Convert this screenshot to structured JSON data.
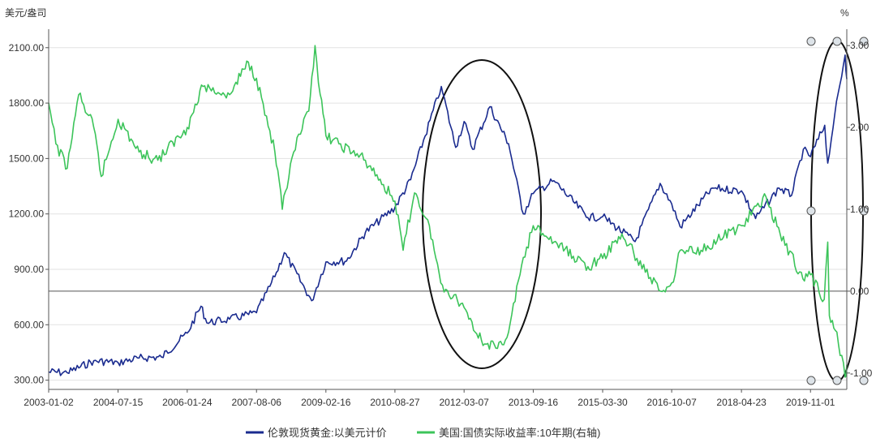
{
  "chart_data": {
    "type": "line",
    "left_axis_unit": "美元/盎司",
    "right_axis_unit": "%",
    "left_ylim": [
      250,
      2200
    ],
    "right_ylim": [
      -1.2,
      3.2
    ],
    "left_ticks": [
      "300.00",
      "600.00",
      "900.00",
      "1200.00",
      "1500.00",
      "1800.00",
      "2100.00"
    ],
    "right_ticks": [
      "-1.00",
      "0.00",
      "1.00",
      "2.00",
      "3.00"
    ],
    "x_ticks": [
      "2003-01-02",
      "2004-07-15",
      "2006-01-24",
      "2007-08-06",
      "2009-02-16",
      "2010-08-27",
      "2012-03-07",
      "2013-09-16",
      "2015-03-30",
      "2016-10-07",
      "2018-04-23",
      "2019-11-01"
    ],
    "x_range": [
      "2003-01-02",
      "2020-08-20"
    ],
    "grid": "horizontal",
    "legend_position": "bottom",
    "series": [
      {
        "name": "伦敦现货黄金:以美元计价",
        "color": "#1a2b8f",
        "axis": "left",
        "points": [
          [
            "2003-01-02",
            345
          ],
          [
            "2003-06-01",
            340
          ],
          [
            "2004-01-01",
            405
          ],
          [
            "2004-07-15",
            395
          ],
          [
            "2005-01-01",
            420
          ],
          [
            "2005-07-01",
            425
          ],
          [
            "2006-01-24",
            555
          ],
          [
            "2006-05-15",
            700
          ],
          [
            "2006-07-01",
            610
          ],
          [
            "2007-01-01",
            630
          ],
          [
            "2007-08-06",
            665
          ],
          [
            "2008-01-01",
            860
          ],
          [
            "2008-03-17",
            990
          ],
          [
            "2008-10-24",
            730
          ],
          [
            "2009-02-16",
            940
          ],
          [
            "2009-08-01",
            945
          ],
          [
            "2010-01-01",
            1100
          ],
          [
            "2010-08-27",
            1235
          ],
          [
            "2011-01-01",
            1385
          ],
          [
            "2011-09-05",
            1890
          ],
          [
            "2011-12-30",
            1560
          ],
          [
            "2012-03-07",
            1700
          ],
          [
            "2012-05-15",
            1550
          ],
          [
            "2012-10-01",
            1780
          ],
          [
            "2013-03-01",
            1580
          ],
          [
            "2013-06-28",
            1200
          ],
          [
            "2013-09-16",
            1310
          ],
          [
            "2014-03-01",
            1380
          ],
          [
            "2014-12-01",
            1180
          ],
          [
            "2015-03-30",
            1185
          ],
          [
            "2015-12-17",
            1050
          ],
          [
            "2016-07-06",
            1365
          ],
          [
            "2016-10-07",
            1255
          ],
          [
            "2016-12-15",
            1130
          ],
          [
            "2017-09-01",
            1340
          ],
          [
            "2018-04-23",
            1325
          ],
          [
            "2018-08-15",
            1175
          ],
          [
            "2019-02-20",
            1340
          ],
          [
            "2019-06-01",
            1300
          ],
          [
            "2019-09-04",
            1550
          ],
          [
            "2019-11-01",
            1510
          ],
          [
            "2020-02-24",
            1680
          ],
          [
            "2020-03-19",
            1475
          ],
          [
            "2020-05-15",
            1740
          ],
          [
            "2020-08-06",
            2060
          ],
          [
            "2020-08-20",
            1930
          ]
        ]
      },
      {
        "name": "美国:国债实际收益率:10年期(右轴)",
        "color": "#3cc45a",
        "axis": "right",
        "points": [
          [
            "2003-01-02",
            2.3
          ],
          [
            "2003-03-01",
            1.8
          ],
          [
            "2003-06-01",
            1.5
          ],
          [
            "2003-09-01",
            2.4
          ],
          [
            "2004-01-01",
            2.0
          ],
          [
            "2004-03-01",
            1.4
          ],
          [
            "2004-07-15",
            2.1
          ],
          [
            "2005-01-01",
            1.7
          ],
          [
            "2005-06-01",
            1.6
          ],
          [
            "2006-01-24",
            2.0
          ],
          [
            "2006-06-01",
            2.5
          ],
          [
            "2007-01-01",
            2.4
          ],
          [
            "2007-06-01",
            2.8
          ],
          [
            "2007-08-06",
            2.6
          ],
          [
            "2008-01-01",
            1.7
          ],
          [
            "2008-03-01",
            1.0
          ],
          [
            "2008-06-01",
            1.7
          ],
          [
            "2008-10-01",
            2.2
          ],
          [
            "2008-11-20",
            3.0
          ],
          [
            "2009-01-01",
            2.4
          ],
          [
            "2009-02-16",
            1.9
          ],
          [
            "2009-06-01",
            1.8
          ],
          [
            "2010-01-01",
            1.6
          ],
          [
            "2010-08-27",
            1.1
          ],
          [
            "2010-11-01",
            0.5
          ],
          [
            "2011-02-01",
            1.2
          ],
          [
            "2011-06-01",
            0.8
          ],
          [
            "2011-09-01",
            0.1
          ],
          [
            "2012-03-07",
            -0.2
          ],
          [
            "2012-07-25",
            -0.6
          ],
          [
            "2012-12-01",
            -0.7
          ],
          [
            "2013-03-01",
            -0.5
          ],
          [
            "2013-06-01",
            0.2
          ],
          [
            "2013-09-16",
            0.8
          ],
          [
            "2014-03-01",
            0.6
          ],
          [
            "2014-12-01",
            0.3
          ],
          [
            "2015-03-30",
            0.4
          ],
          [
            "2015-09-01",
            0.7
          ],
          [
            "2016-01-01",
            0.4
          ],
          [
            "2016-07-08",
            0.0
          ],
          [
            "2016-10-07",
            0.1
          ],
          [
            "2016-12-15",
            0.5
          ],
          [
            "2017-06-01",
            0.5
          ],
          [
            "2018-04-23",
            0.8
          ],
          [
            "2018-11-08",
            1.15
          ],
          [
            "2019-03-01",
            0.7
          ],
          [
            "2019-09-01",
            0.15
          ],
          [
            "2019-11-01",
            0.2
          ],
          [
            "2020-02-20",
            -0.1
          ],
          [
            "2020-03-19",
            0.6
          ],
          [
            "2020-04-01",
            -0.3
          ],
          [
            "2020-06-01",
            -0.5
          ],
          [
            "2020-08-06",
            -1.05
          ],
          [
            "2020-08-20",
            -0.9
          ]
        ]
      }
    ]
  }
}
